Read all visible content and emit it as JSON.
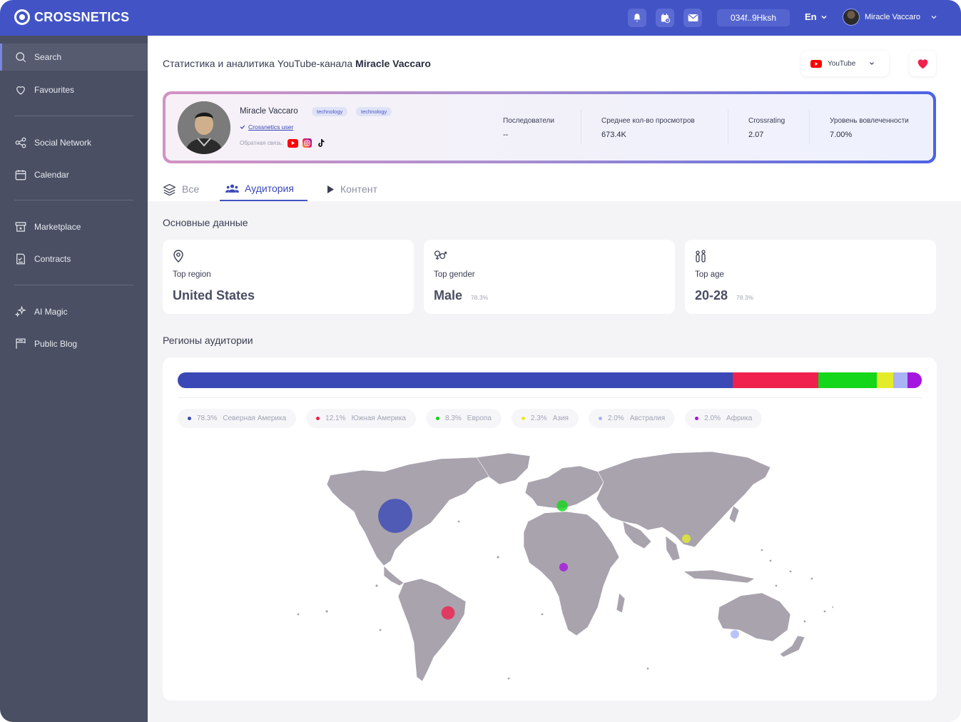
{
  "brand": {
    "name": "CROSSNETICS"
  },
  "topbar": {
    "wallet": "034f..9Hksh",
    "lang": "En",
    "user_name": "Miracle Vaccaro",
    "icons": [
      "bell-icon",
      "calendar-clock-icon",
      "mail-icon",
      "chevron-down-icon"
    ]
  },
  "sidebar": {
    "items": [
      {
        "label": "Search",
        "icon": "search-icon",
        "active": true
      },
      {
        "label": "Favourites",
        "icon": "heart-icon"
      },
      {
        "label": "Social Network",
        "icon": "share-icon"
      },
      {
        "label": "Calendar",
        "icon": "calendar-icon"
      },
      {
        "label": "Marketplace",
        "icon": "store-icon"
      },
      {
        "label": "Contracts",
        "icon": "contract-icon"
      },
      {
        "label": "AI Magic",
        "icon": "sparkles-icon"
      },
      {
        "label": "Public Blog",
        "icon": "blog-icon"
      }
    ]
  },
  "header": {
    "title_prefix": "Статистика и аналитика YouTube-канала ",
    "title_name": "Miracle Vaccaro",
    "platform": "YouTube"
  },
  "profile": {
    "name": "Miracle Vaccaro",
    "tags": [
      "technology",
      "technology"
    ],
    "crossnetics_user": "Crossnetics user",
    "feedback_label": "Обратная связь:",
    "stats": [
      {
        "label": "Последователи",
        "value": "--"
      },
      {
        "label": "Среднее кол-во просмотров",
        "value": "673.4K"
      },
      {
        "label": "Crossrating",
        "value": "2.07"
      },
      {
        "label": "Уровень вовлеченности",
        "value": "7.00%"
      }
    ]
  },
  "tabs": [
    {
      "label": "Все",
      "icon": "layers-icon"
    },
    {
      "label": "Аудитория",
      "icon": "users-icon",
      "active": true
    },
    {
      "label": "Контент",
      "icon": "play-icon"
    }
  ],
  "basic": {
    "title": "Основные данные",
    "cards": [
      {
        "label": "Top region",
        "value": "United States",
        "pct": "",
        "icon": "location-pin-icon"
      },
      {
        "label": "Top gender",
        "value": "Male",
        "pct": "78.3%",
        "icon": "gender-icon"
      },
      {
        "label": "Top age",
        "value": "20-28",
        "pct": "78.3%",
        "icon": "age-icon"
      }
    ]
  },
  "regions": {
    "title": "Регионы аудитории",
    "items": [
      {
        "pct": "78.3%",
        "name": "Северная Америка",
        "value": 78.3,
        "color": "#3a49b6"
      },
      {
        "pct": "12.1%",
        "name": "Южная Америка",
        "value": 12.1,
        "color": "#f0214f"
      },
      {
        "pct": "8.3%",
        "name": "Европа",
        "value": 8.3,
        "color": "#14d61a"
      },
      {
        "pct": "2.3%",
        "name": "Азия",
        "value": 2.3,
        "color": "#e4ec2a"
      },
      {
        "pct": "2.0%",
        "name": "Австралия",
        "value": 2.0,
        "color": "#a9b4f7"
      },
      {
        "pct": "2.0%",
        "name": "Африка",
        "value": 2.0,
        "color": "#a515e0"
      }
    ]
  }
}
